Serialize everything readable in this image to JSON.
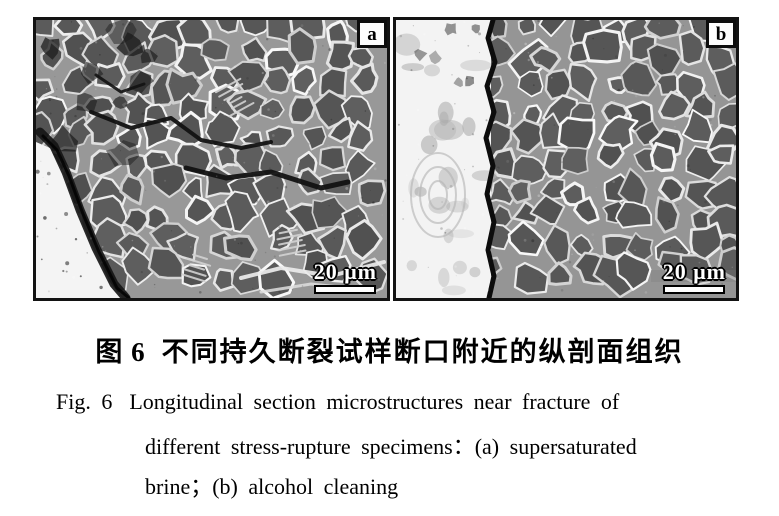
{
  "figure": {
    "panels": [
      {
        "corner_label": "a",
        "scale_bar_label": "20 μm"
      },
      {
        "corner_label": "b",
        "scale_bar_label": "20 μm"
      }
    ]
  },
  "caption": {
    "zh_label": "图 6",
    "zh_text": "不同持久断裂试样断口附近的纵剖面组织",
    "en_label": "Fig. 6",
    "en_line1": "Longitudinal section microstructures near fracture of",
    "en_line2": "different stress-rupture specimens：(a) supersaturated",
    "en_line3": "brine；(b) alcohol cleaning"
  },
  "colors": {
    "page_bg": "#ffffff",
    "frame_border": "#131313",
    "grain_base": "#575757",
    "grain_boundary": "#d8d8d8",
    "fracture_bright": "#f4f4f4",
    "crack_dark": "#121212"
  }
}
